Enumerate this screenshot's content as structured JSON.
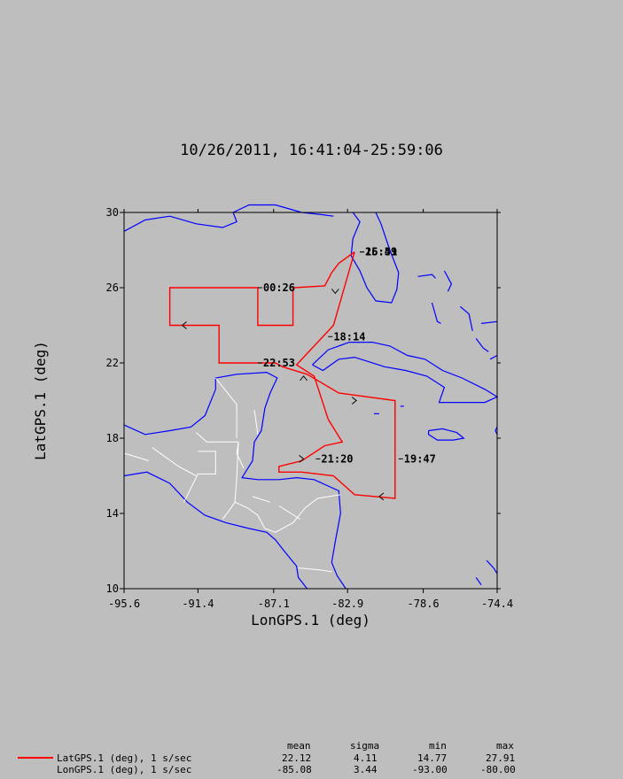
{
  "title": "10/26/2011, 16:41:04-25:59:06",
  "chart_data": {
    "type": "line",
    "xlabel": "LonGPS.1 (deg)",
    "ylabel": "LatGPS.1 (deg)",
    "xlim": [
      -95.6,
      -74.4
    ],
    "ylim": [
      10,
      30
    ],
    "xticks": [
      "-95.6",
      "-91.4",
      "-87.1",
      "-82.9",
      "-78.6",
      "-74.4"
    ],
    "yticks": [
      "10",
      "14",
      "18",
      "22",
      "26",
      "30"
    ],
    "grid": false,
    "series": [
      {
        "name": "LatGPS.1 (deg), 1 s/sec",
        "color": "#ff0000",
        "points": [
          [
            -82.5,
            27.9
          ],
          [
            -83.4,
            27.3
          ],
          [
            -83.8,
            26.8
          ],
          [
            -84.2,
            26.1
          ],
          [
            -86.0,
            26.0
          ],
          [
            -86.0,
            24.0
          ],
          [
            -88.0,
            24.0
          ],
          [
            -88.0,
            26.0
          ],
          [
            -93.0,
            26.0
          ],
          [
            -93.0,
            24.0
          ],
          [
            -90.2,
            24.0
          ],
          [
            -90.2,
            22.0
          ],
          [
            -87.0,
            22.0
          ],
          [
            -86.6,
            21.8
          ],
          [
            -85.2,
            21.4
          ],
          [
            -83.4,
            20.4
          ],
          [
            -80.2,
            20.0
          ],
          [
            -80.2,
            14.8
          ],
          [
            -82.5,
            15.0
          ],
          [
            -83.7,
            16.0
          ],
          [
            -85.5,
            16.2
          ],
          [
            -86.8,
            16.2
          ],
          [
            -86.8,
            16.5
          ],
          [
            -85.5,
            16.8
          ],
          [
            -84.2,
            17.6
          ],
          [
            -83.2,
            17.8
          ],
          [
            -84.0,
            19.0
          ],
          [
            -84.8,
            21.3
          ],
          [
            -85.8,
            21.9
          ],
          [
            -83.7,
            24.0
          ],
          [
            -82.5,
            27.9
          ]
        ]
      }
    ],
    "time_labels": [
      {
        "text": "00:26",
        "lon": -87.7,
        "lat": 26.0
      },
      {
        "text": "18:14",
        "lon": -83.7,
        "lat": 23.4
      },
      {
        "text": "22:53",
        "lon": -87.7,
        "lat": 22.0
      },
      {
        "text": "21:20",
        "lon": -84.4,
        "lat": 16.9
      },
      {
        "text": "19:47",
        "lon": -79.7,
        "lat": 16.9
      },
      {
        "text": "16:41",
        "lon": -81.9,
        "lat": 27.9
      },
      {
        "text": "25:59",
        "lon": -81.9,
        "lat": 27.9
      }
    ],
    "arrows": [
      {
        "lon": -83.6,
        "lat": 25.7,
        "dir": "down"
      },
      {
        "lon": -92.3,
        "lat": 24.0,
        "dir": "left"
      },
      {
        "lon": -85.4,
        "lat": 21.3,
        "dir": "up"
      },
      {
        "lon": -82.4,
        "lat": 20.0,
        "dir": "right"
      },
      {
        "lon": -81.1,
        "lat": 14.9,
        "dir": "left"
      },
      {
        "lon": -85.4,
        "lat": 16.9,
        "dir": "right"
      }
    ]
  },
  "stats": {
    "headers": [
      "mean",
      "sigma",
      "min",
      "max"
    ],
    "rows": [
      {
        "label": "LatGPS.1 (deg), 1 s/sec",
        "values": [
          "22.12",
          "4.11",
          "14.77",
          "27.91"
        ]
      },
      {
        "label": "LonGPS.1 (deg), 1 s/sec",
        "values": [
          "-85.08",
          "3.44",
          "-93.00",
          "-80.00"
        ]
      }
    ]
  }
}
